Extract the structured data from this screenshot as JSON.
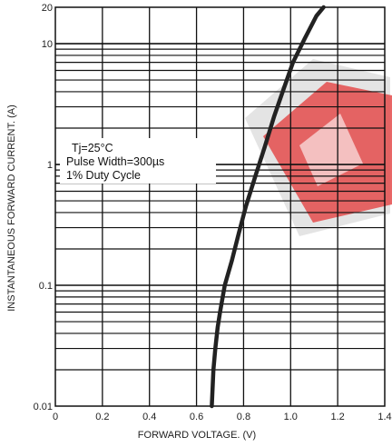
{
  "chart_data": {
    "type": "line",
    "title": "",
    "xlabel": "FORWARD VOLTAGE. (V)",
    "ylabel": "INSTANTANEOUS FORWARD CURRENT. (A)",
    "x_scale": "linear",
    "y_scale": "log",
    "xlim": [
      0,
      1.4
    ],
    "ylim": [
      0.01,
      20
    ],
    "x_ticks": [
      "0",
      "0.2",
      "0.4",
      "0.6",
      "0.8",
      "1.0",
      "1.2",
      "1.4"
    ],
    "x_tick_values": [
      0,
      0.2,
      0.4,
      0.6,
      0.8,
      1.0,
      1.2,
      1.4
    ],
    "y_ticks": [
      "0.01",
      "0.1",
      "1",
      "10",
      "20"
    ],
    "y_tick_values": [
      0.01,
      0.1,
      1,
      10,
      20
    ],
    "grid": true,
    "annotation_lines": [
      "Tj=25°C",
      "Pulse Width=300µs",
      "1% Duty Cycle"
    ],
    "series": [
      {
        "color": "#222222",
        "x": [
          0.665,
          0.672,
          0.68,
          0.69,
          0.7,
          0.72,
          0.75,
          0.78,
          0.81,
          0.85,
          0.89,
          0.93,
          0.97,
          1.01,
          1.06,
          1.11,
          1.14
        ],
        "y": [
          0.01,
          0.02,
          0.03,
          0.045,
          0.06,
          0.1,
          0.16,
          0.27,
          0.45,
          0.8,
          1.4,
          2.5,
          4.2,
          7.0,
          11,
          17,
          20
        ]
      }
    ]
  },
  "watermark": {
    "colors": [
      "#dd2a2a",
      "#c8c8c8"
    ]
  }
}
